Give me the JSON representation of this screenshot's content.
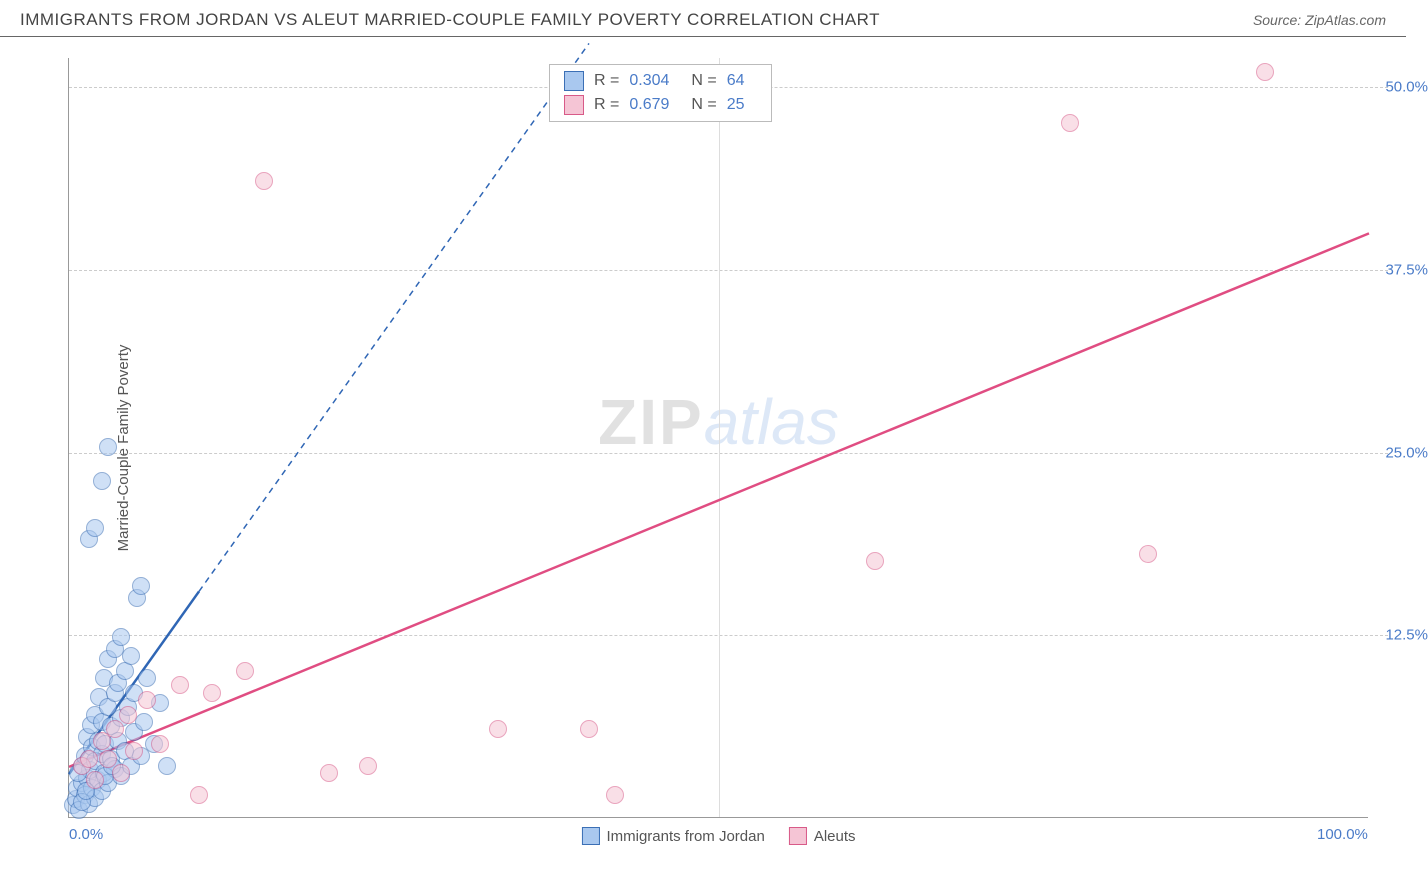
{
  "header": {
    "title": "IMMIGRANTS FROM JORDAN VS ALEUT MARRIED-COUPLE FAMILY POVERTY CORRELATION CHART",
    "source": "Source: ZipAtlas.com"
  },
  "chart": {
    "type": "scatter",
    "y_axis_label": "Married-Couple Family Poverty",
    "xlim": [
      0,
      100
    ],
    "ylim": [
      0,
      52
    ],
    "x_ticks": [
      {
        "v": 0,
        "label": "0.0%"
      },
      {
        "v": 100,
        "label": "100.0%"
      }
    ],
    "y_ticks": [
      {
        "v": 12.5,
        "label": "12.5%"
      },
      {
        "v": 25,
        "label": "25.0%"
      },
      {
        "v": 37.5,
        "label": "37.5%"
      },
      {
        "v": 50,
        "label": "50.0%"
      }
    ],
    "x_gridlines": [
      50
    ],
    "background_color": "#ffffff",
    "grid_color": "#cccccc",
    "point_radius": 9,
    "point_stroke_width": 1.2,
    "series": [
      {
        "name": "Immigrants from Jordan",
        "fill": "#a9c8ef",
        "stroke": "#3b6fb5",
        "fill_opacity": 0.55,
        "R": "0.304",
        "N": "64",
        "trend": {
          "x1": 0,
          "y1": 3,
          "x2": 10,
          "y2": 15.5,
          "x2_dash": 40,
          "y2_dash": 53,
          "color": "#2f66b5",
          "width": 2.5,
          "dash": "6,5"
        },
        "points": [
          [
            0.3,
            0.8
          ],
          [
            0.5,
            1.2
          ],
          [
            0.6,
            2.0
          ],
          [
            0.8,
            0.5
          ],
          [
            1.0,
            2.3
          ],
          [
            1.0,
            3.5
          ],
          [
            1.2,
            1.5
          ],
          [
            1.2,
            4.2
          ],
          [
            1.4,
            2.7
          ],
          [
            1.4,
            5.5
          ],
          [
            1.5,
            0.9
          ],
          [
            1.6,
            3.2
          ],
          [
            1.7,
            6.3
          ],
          [
            1.8,
            2.0
          ],
          [
            1.8,
            4.8
          ],
          [
            2.0,
            1.3
          ],
          [
            2.0,
            3.8
          ],
          [
            2.0,
            7.0
          ],
          [
            2.2,
            2.5
          ],
          [
            2.2,
            5.2
          ],
          [
            2.3,
            8.2
          ],
          [
            2.5,
            1.8
          ],
          [
            2.5,
            4.3
          ],
          [
            2.5,
            6.5
          ],
          [
            2.7,
            3.0
          ],
          [
            2.7,
            9.5
          ],
          [
            2.8,
            5.0
          ],
          [
            3.0,
            2.3
          ],
          [
            3.0,
            7.5
          ],
          [
            3.0,
            10.8
          ],
          [
            3.2,
            4.0
          ],
          [
            3.2,
            6.2
          ],
          [
            3.5,
            3.3
          ],
          [
            3.5,
            8.5
          ],
          [
            3.5,
            11.5
          ],
          [
            3.8,
            5.2
          ],
          [
            3.8,
            9.2
          ],
          [
            4.0,
            2.8
          ],
          [
            4.0,
            6.8
          ],
          [
            4.0,
            12.3
          ],
          [
            4.3,
            4.5
          ],
          [
            4.3,
            10.0
          ],
          [
            4.5,
            7.5
          ],
          [
            4.8,
            3.5
          ],
          [
            4.8,
            11.0
          ],
          [
            5.0,
            5.8
          ],
          [
            5.0,
            8.5
          ],
          [
            5.2,
            15.0
          ],
          [
            5.5,
            4.2
          ],
          [
            5.5,
            15.8
          ],
          [
            5.8,
            6.5
          ],
          [
            6.0,
            9.5
          ],
          [
            6.5,
            5.0
          ],
          [
            7.0,
            7.8
          ],
          [
            7.5,
            3.5
          ],
          [
            1.5,
            19.0
          ],
          [
            2.0,
            19.8
          ],
          [
            2.5,
            23.0
          ],
          [
            3.0,
            25.3
          ],
          [
            1.0,
            1.0
          ],
          [
            1.3,
            1.8
          ],
          [
            0.7,
            3.0
          ],
          [
            2.8,
            2.8
          ],
          [
            3.3,
            3.5
          ]
        ]
      },
      {
        "name": "Aleuts",
        "fill": "#f5c5d5",
        "stroke": "#d85a88",
        "fill_opacity": 0.55,
        "R": "0.679",
        "N": "25",
        "trend": {
          "x1": 0,
          "y1": 3.5,
          "x2": 100,
          "y2": 40,
          "color": "#e04d82",
          "width": 2.5
        },
        "points": [
          [
            1.0,
            3.5
          ],
          [
            1.5,
            4.0
          ],
          [
            2.0,
            2.5
          ],
          [
            2.5,
            5.2
          ],
          [
            3.0,
            4.0
          ],
          [
            3.5,
            6.0
          ],
          [
            4.0,
            3.0
          ],
          [
            4.5,
            7.0
          ],
          [
            5.0,
            4.5
          ],
          [
            6.0,
            8.0
          ],
          [
            7.0,
            5.0
          ],
          [
            8.5,
            9.0
          ],
          [
            10.0,
            1.5
          ],
          [
            11.0,
            8.5
          ],
          [
            13.5,
            10.0
          ],
          [
            15.0,
            43.5
          ],
          [
            20.0,
            3.0
          ],
          [
            23.0,
            3.5
          ],
          [
            33.0,
            6.0
          ],
          [
            40.0,
            6.0
          ],
          [
            42.0,
            1.5
          ],
          [
            62.0,
            17.5
          ],
          [
            77.0,
            47.5
          ],
          [
            83.0,
            18.0
          ],
          [
            92.0,
            51.0
          ]
        ]
      }
    ],
    "watermark": {
      "part1": "ZIP",
      "part2": "atlas"
    },
    "bottom_legend": [
      {
        "label": "Immigrants from Jordan",
        "fill": "#a9c8ef",
        "stroke": "#3b6fb5"
      },
      {
        "label": "Aleuts",
        "fill": "#f5c5d5",
        "stroke": "#d85a88"
      }
    ]
  }
}
